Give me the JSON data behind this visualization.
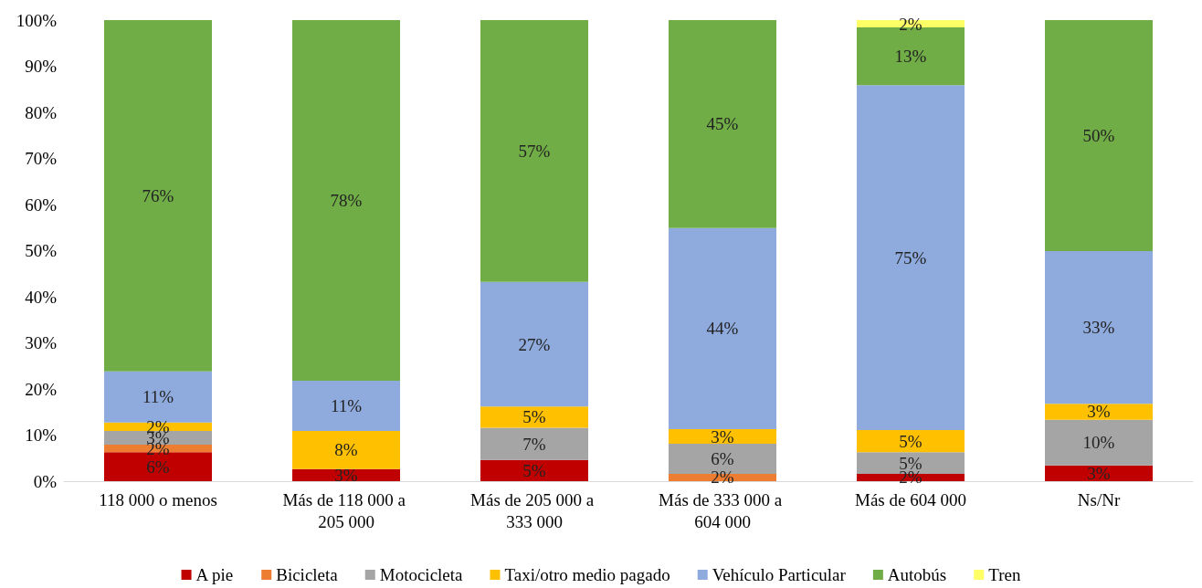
{
  "chart_data": {
    "type": "bar",
    "stacked": true,
    "grid": false,
    "legend": "bottom",
    "categories": [
      "118 000 o menos",
      "Más de 118 000 a 205 000",
      "Más de 205 000 a 333 000",
      "Más de 333 000 a 604 000",
      "Más de 604 000",
      "Ns/Nr"
    ],
    "ylim": [
      0,
      100
    ],
    "yticks": [
      {
        "value": 0,
        "label": "0%"
      },
      {
        "value": 10,
        "label": "10%"
      },
      {
        "value": 20,
        "label": "20%"
      },
      {
        "value": 30,
        "label": "30%"
      },
      {
        "value": 40,
        "label": "40%"
      },
      {
        "value": 50,
        "label": "50%"
      },
      {
        "value": 60,
        "label": "60%"
      },
      {
        "value": 70,
        "label": "70%"
      },
      {
        "value": 80,
        "label": "80%"
      },
      {
        "value": 90,
        "label": "90%"
      },
      {
        "value": 100,
        "label": "100%"
      }
    ],
    "series": [
      {
        "name": "A pie",
        "color": "#c00000",
        "values": [
          6.3,
          2.6,
          4.6,
          null,
          1.6,
          3.4
        ],
        "value_labels": [
          "6%",
          "3%",
          "5%",
          null,
          "2%",
          "3%"
        ]
      },
      {
        "name": "Bicicleta",
        "color": "#ed7d31",
        "values": [
          1.6,
          null,
          null,
          1.6,
          null,
          null
        ],
        "value_labels": [
          "2%",
          null,
          null,
          "2%",
          null,
          null
        ]
      },
      {
        "name": "Motocicleta",
        "color": "#a5a5a5",
        "values": [
          3.0,
          null,
          7.0,
          6.5,
          4.7,
          9.9
        ],
        "value_labels": [
          "3%",
          null,
          "7%",
          "6%",
          "5%",
          "10%"
        ]
      },
      {
        "name": "Taxi/otro medio pagado",
        "color": "#ffc000",
        "values": [
          1.8,
          8.3,
          4.6,
          3.2,
          4.8,
          3.5
        ],
        "value_labels": [
          "2%",
          "8%",
          "5%",
          "3%",
          "5%",
          "3%"
        ]
      },
      {
        "name": "Vehículo Particular",
        "color": "#8faadc",
        "values": [
          11.1,
          10.9,
          27.0,
          43.6,
          74.8,
          33.1
        ],
        "value_labels": [
          "11%",
          "11%",
          "27%",
          "44%",
          "75%",
          "33%"
        ]
      },
      {
        "name": "Autobús",
        "color": "#70ad47",
        "values": [
          76.2,
          78.2,
          56.8,
          45.1,
          12.5,
          50.1
        ],
        "value_labels": [
          "76%",
          "78%",
          "57%",
          "45%",
          "13%",
          "50%"
        ]
      },
      {
        "name": "Tren",
        "color": "#ffff66",
        "values": [
          null,
          null,
          null,
          null,
          1.6,
          null
        ],
        "value_labels": [
          null,
          null,
          null,
          null,
          "2%",
          null
        ]
      }
    ]
  }
}
